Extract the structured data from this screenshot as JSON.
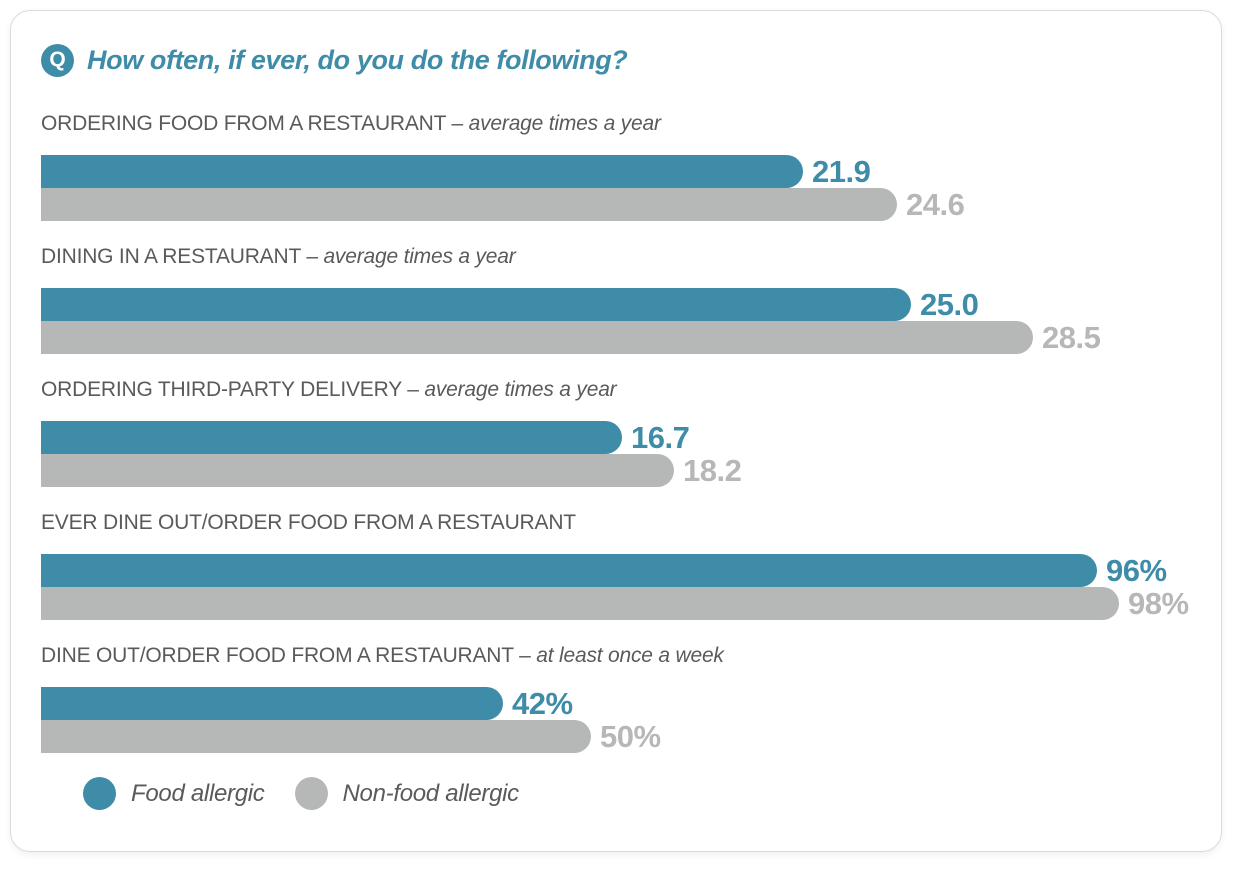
{
  "title": {
    "badge": "Q",
    "text": "How often, if ever, do you do the following?"
  },
  "colors": {
    "food_allergic": "#3E8CA8",
    "non_food_allergic": "#B6B8B7",
    "label_text": "#595A5C"
  },
  "chart_data": {
    "type": "bar",
    "orientation": "horizontal",
    "title": "How often, if ever, do you do the following?",
    "label_separator": "–",
    "series": [
      {
        "name": "Food allergic",
        "color": "#3E8CA8"
      },
      {
        "name": "Non-food allergic",
        "color": "#B6B8B7"
      }
    ],
    "groups": [
      {
        "label": "ORDERING FOOD FROM A RESTAURANT",
        "label_suffix": "average times a year",
        "unit": "times_per_year",
        "values": [
          21.9,
          24.6
        ],
        "display": [
          "21.9",
          "24.6"
        ]
      },
      {
        "label": "DINING IN A RESTAURANT",
        "label_suffix": "average times a year",
        "unit": "times_per_year",
        "values": [
          25.0,
          28.5
        ],
        "display": [
          "25.0",
          "28.5"
        ]
      },
      {
        "label": "ORDERING THIRD-PARTY DELIVERY",
        "label_suffix": "average times a year",
        "unit": "times_per_year",
        "values": [
          16.7,
          18.2
        ],
        "display": [
          "16.7",
          "18.2"
        ]
      },
      {
        "label": "EVER DINE OUT/ORDER FOOD FROM A RESTAURANT",
        "label_suffix": "",
        "unit": "percent",
        "values": [
          96,
          98
        ],
        "display": [
          "96%",
          "98%"
        ]
      },
      {
        "label": "DINE OUT/ORDER FOOD FROM A RESTAURANT",
        "label_suffix": "at least once a week",
        "unit": "percent",
        "values": [
          42,
          50
        ],
        "display": [
          "42%",
          "50%"
        ]
      }
    ],
    "legend": [
      {
        "label": "Food allergic"
      },
      {
        "label": "Non-food allergic"
      }
    ],
    "legend_position": "bottom",
    "grid": false
  }
}
